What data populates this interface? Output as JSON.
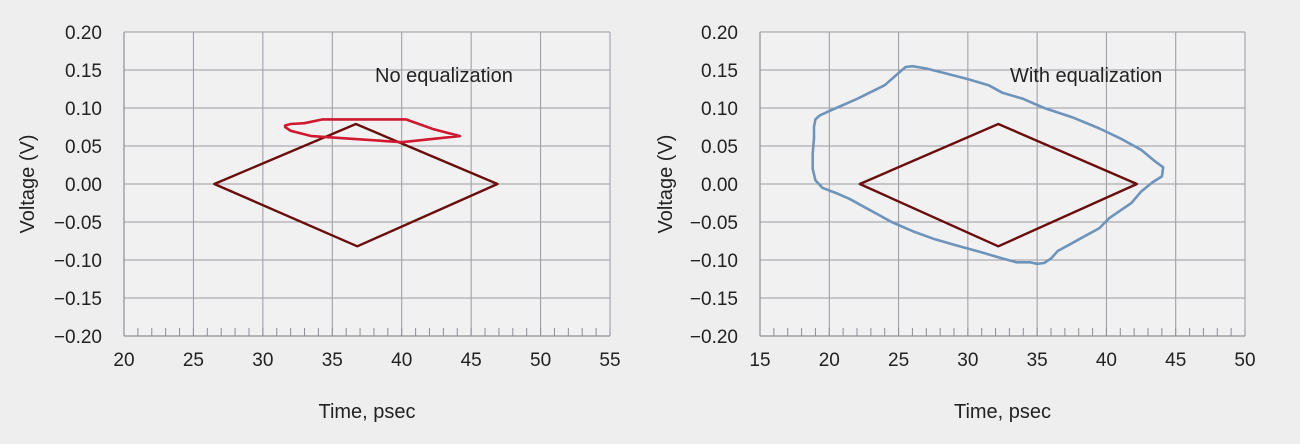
{
  "chart_data": [
    {
      "type": "line",
      "annotation": "No equalization",
      "xlabel": "Time, psec",
      "ylabel": "Voltage (V)",
      "xlim": [
        20,
        55
      ],
      "ylim": [
        -0.2,
        0.2
      ],
      "xticks": [
        20,
        25,
        30,
        35,
        40,
        45,
        50,
        55
      ],
      "yticks": [
        0.2,
        0.15,
        0.1,
        0.05,
        0.0,
        -0.05,
        -0.1,
        -0.15,
        -0.2
      ],
      "ytick_labels": [
        "0.20",
        "0.15",
        "0.10",
        "0.05",
        "0.00",
        "−0.05",
        "−0.10",
        "−0.15",
        "−0.20"
      ],
      "grid": true,
      "series": [
        {
          "role": "eye-mask",
          "color": "#6b0d0d",
          "closed": true,
          "points": [
            [
              26.5,
              0.0
            ],
            [
              36.7,
              0.079
            ],
            [
              46.9,
              0.0
            ],
            [
              36.8,
              -0.082
            ]
          ]
        },
        {
          "role": "eye-contour",
          "color": "#d01830",
          "closed": true,
          "points": [
            [
              31.6,
              0.077
            ],
            [
              32.0,
              0.079
            ],
            [
              33.0,
              0.08
            ],
            [
              34.3,
              0.085
            ],
            [
              37.0,
              0.085
            ],
            [
              40.3,
              0.085
            ],
            [
              42.3,
              0.072
            ],
            [
              44.2,
              0.063
            ],
            [
              40.0,
              0.055
            ],
            [
              36.0,
              0.06
            ],
            [
              33.5,
              0.063
            ],
            [
              32.0,
              0.07
            ],
            [
              31.6,
              0.075
            ]
          ]
        }
      ]
    },
    {
      "type": "line",
      "annotation": "With equalization",
      "xlabel": "Time, psec",
      "ylabel": "Voltage (V)",
      "xlim": [
        15,
        50
      ],
      "ylim": [
        -0.2,
        0.2
      ],
      "xticks": [
        15,
        20,
        25,
        30,
        35,
        40,
        45,
        50
      ],
      "yticks": [
        0.2,
        0.15,
        0.1,
        0.05,
        0.0,
        -0.05,
        -0.1,
        -0.15,
        -0.2
      ],
      "ytick_labels": [
        "0.20",
        "0.15",
        "0.10",
        "0.05",
        "0.00",
        "−0.05",
        "−0.10",
        "−0.15",
        "−0.20"
      ],
      "grid": true,
      "series": [
        {
          "role": "eye-mask",
          "color": "#6b0d0d",
          "closed": true,
          "points": [
            [
              22.2,
              0.0
            ],
            [
              32.2,
              0.079
            ],
            [
              42.2,
              0.0
            ],
            [
              32.2,
              -0.082
            ]
          ]
        },
        {
          "role": "eye-contour",
          "color": "#6e94bc",
          "closed": true,
          "points": [
            [
              19.0,
              0.085
            ],
            [
              19.3,
              0.09
            ],
            [
              20.0,
              0.096
            ],
            [
              22.0,
              0.112
            ],
            [
              24.0,
              0.13
            ],
            [
              25.5,
              0.154
            ],
            [
              26.0,
              0.155
            ],
            [
              27.0,
              0.152
            ],
            [
              28.5,
              0.145
            ],
            [
              30.0,
              0.138
            ],
            [
              31.5,
              0.13
            ],
            [
              32.5,
              0.12
            ],
            [
              34.0,
              0.112
            ],
            [
              35.5,
              0.1
            ],
            [
              37.5,
              0.088
            ],
            [
              39.5,
              0.073
            ],
            [
              41.0,
              0.06
            ],
            [
              42.5,
              0.045
            ],
            [
              43.5,
              0.03
            ],
            [
              44.1,
              0.022
            ],
            [
              44.0,
              0.01
            ],
            [
              43.3,
              0.002
            ],
            [
              42.5,
              -0.01
            ],
            [
              41.8,
              -0.025
            ],
            [
              41.0,
              -0.035
            ],
            [
              40.2,
              -0.045
            ],
            [
              39.5,
              -0.058
            ],
            [
              38.5,
              -0.068
            ],
            [
              37.5,
              -0.078
            ],
            [
              36.5,
              -0.088
            ],
            [
              36.0,
              -0.098
            ],
            [
              35.5,
              -0.104
            ],
            [
              35.0,
              -0.105
            ],
            [
              34.5,
              -0.103
            ],
            [
              33.5,
              -0.103
            ],
            [
              32.5,
              -0.098
            ],
            [
              31.0,
              -0.09
            ],
            [
              29.0,
              -0.08
            ],
            [
              27.5,
              -0.072
            ],
            [
              26.0,
              -0.062
            ],
            [
              24.5,
              -0.05
            ],
            [
              23.5,
              -0.04
            ],
            [
              22.5,
              -0.03
            ],
            [
              21.5,
              -0.02
            ],
            [
              20.5,
              -0.012
            ],
            [
              19.5,
              -0.005
            ],
            [
              19.0,
              0.005
            ],
            [
              18.8,
              0.02
            ],
            [
              18.8,
              0.04
            ],
            [
              18.9,
              0.06
            ],
            [
              18.9,
              0.075
            ],
            [
              19.0,
              0.085
            ]
          ]
        }
      ]
    }
  ]
}
